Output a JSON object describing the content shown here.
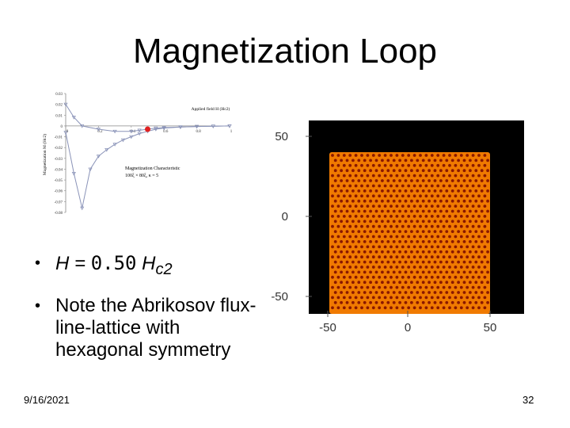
{
  "slide": {
    "title": "Magnetization Loop",
    "bullet1": {
      "prefix": "H = ",
      "value": "0.50",
      "suffix": " H",
      "subscript": "c2"
    },
    "bullet2": "Note the Abrikosov flux-line-lattice with hexagonal symmetry",
    "date": "9/16/2021",
    "page_number": "32"
  },
  "chart_data": {
    "type": "line",
    "xlabel": "Applied field H (Hc2)",
    "ylabel": "Magnetization M (Hc2)",
    "caption_title": "Magnetization Characteristic",
    "caption_detail": "100ξ × 80ξ, κ = 5",
    "xlim": [
      0,
      1
    ],
    "ylim": [
      -0.08,
      0.03
    ],
    "x_ticks": [
      "0",
      "0.2",
      "0.4",
      "0.6",
      "0.8",
      "1"
    ],
    "y_ticks": [
      "0.03",
      "0.02",
      "0.01",
      "0",
      "-0.01",
      "-0.02",
      "-0.03",
      "-0.04",
      "-0.05",
      "-0.06",
      "-0.07",
      "-0.08"
    ],
    "series": [
      {
        "x": [
          0,
          0.05,
          0.1,
          0.15,
          0.2,
          0.25,
          0.3,
          0.35,
          0.4,
          0.45,
          0.5,
          0.55,
          0.6,
          0.7,
          0.8,
          0.9,
          1.0
        ],
        "y": [
          -0.006,
          -0.044,
          -0.076,
          -0.04,
          -0.028,
          -0.022,
          -0.017,
          -0.013,
          -0.01,
          -0.007,
          -0.005,
          -0.003,
          -0.002,
          -0.001,
          -0.0005,
          -0.0002,
          0
        ]
      },
      {
        "x": [
          0.0,
          0.05,
          0.1,
          0.2,
          0.3,
          0.4,
          0.45,
          0.5,
          0.55,
          0.6,
          0.7,
          0.8,
          0.9,
          1.0
        ],
        "y": [
          0.02,
          0.008,
          0.0,
          -0.003,
          -0.005,
          -0.005,
          -0.004,
          -0.003,
          -0.002,
          -0.0015,
          -0.001,
          -0.0005,
          -0.0002,
          0
        ]
      }
    ],
    "highlight_point": {
      "x": 0.5,
      "y": -0.003,
      "color": "#e02020"
    }
  },
  "simulation_panel": {
    "x_ticks": [
      "-50",
      "0",
      "50"
    ],
    "y_ticks": [
      "50",
      "0",
      "-50"
    ]
  },
  "colors": {
    "curve": "#8a93b8",
    "lattice_bg": "#f07a00",
    "vortex": "#8a1800",
    "panel_bg": "#000000"
  }
}
